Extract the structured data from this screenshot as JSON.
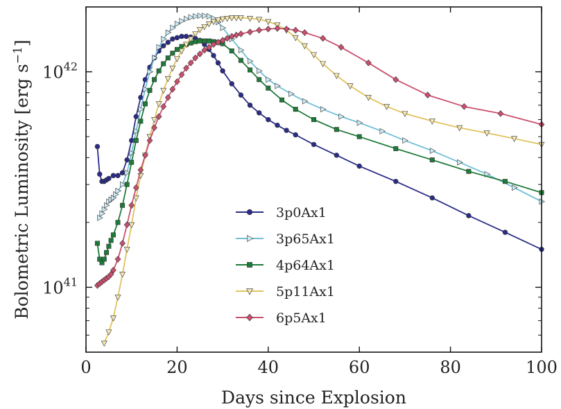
{
  "chart_data": {
    "type": "line",
    "xlabel": "Days since Explosion",
    "ylabel": "Bolometric Luminosity [erg s",
    "ylabel_unit_exp": "−1",
    "ylabel_close": "]",
    "xlim": [
      0,
      100
    ],
    "ylim": [
      5e+40,
      2e+42
    ],
    "yscale": "log",
    "xticks": [
      0,
      20,
      40,
      60,
      80,
      100
    ],
    "xtick_labels": [
      "0",
      "20",
      "40",
      "60",
      "80",
      "100"
    ],
    "yticks": [
      1e+41,
      1e+42
    ],
    "ytick_labels": [
      {
        "base": "10",
        "exp": "41"
      },
      {
        "base": "10",
        "exp": "42"
      }
    ],
    "grid": false,
    "legend_position": "lower-center",
    "series": [
      {
        "name": "3p0Ax1",
        "color": "#2b2c86",
        "marker": "circle",
        "x": [
          2.5,
          3,
          3.5,
          4,
          4.5,
          5,
          6,
          7,
          8,
          9,
          10,
          11,
          12,
          13,
          14,
          15,
          16,
          17,
          18,
          19,
          20,
          21,
          22,
          23,
          24,
          25,
          26,
          27,
          28,
          29,
          30,
          32,
          34,
          36,
          38,
          40,
          42,
          44,
          46,
          50,
          55,
          60,
          68,
          76,
          84,
          92,
          100
        ],
        "y": [
          4.5e+41,
          3.35e+41,
          3.1e+41,
          3.1e+41,
          3.15e+41,
          3.2e+41,
          3.3e+41,
          3.3e+41,
          3.4e+41,
          3.9e+41,
          4.8e+41,
          6.2e+41,
          7.6e+41,
          9.2e+41,
          1.05e+42,
          1.16e+42,
          1.25e+42,
          1.32e+42,
          1.37e+42,
          1.42e+42,
          1.44e+42,
          1.46e+42,
          1.46e+42,
          1.45e+42,
          1.43e+42,
          1.4e+42,
          1.34e+42,
          1.27e+42,
          1.19e+42,
          1.1e+42,
          1.01e+42,
          8.8e+41,
          7.8e+41,
          7e+41,
          6.45e+41,
          6e+41,
          5.65e+41,
          5.35e+41,
          5.1e+41,
          4.6e+41,
          4.1e+41,
          3.65e+41,
          3.1e+41,
          2.6e+41,
          2.15e+41,
          1.8e+41,
          1.5e+41
        ]
      },
      {
        "name": "3p65Ax1",
        "color": "#6fbfd6",
        "marker": "triangle-right",
        "x": [
          3,
          3.5,
          4,
          4.5,
          5,
          5.5,
          6,
          6.5,
          7,
          8,
          9,
          10,
          11,
          12,
          13,
          14,
          15,
          16,
          17,
          18,
          19,
          20,
          21,
          22,
          23,
          24,
          25,
          26,
          27,
          28,
          29,
          30,
          32,
          34,
          36,
          38,
          40,
          42,
          45,
          48,
          52,
          56,
          60,
          65,
          70,
          76,
          82,
          88,
          94,
          100
        ],
        "y": [
          2.1e+41,
          2.2e+41,
          2.3e+41,
          2.4e+41,
          2.5e+41,
          2.55e+41,
          2.6e+41,
          2.7e+41,
          2.8e+41,
          3e+41,
          3.4e+41,
          4.2e+41,
          5.3e+41,
          6.7e+41,
          8.3e+41,
          1e+42,
          1.16e+42,
          1.3e+42,
          1.42e+42,
          1.52e+42,
          1.6e+42,
          1.67e+42,
          1.72e+42,
          1.76e+42,
          1.79e+42,
          1.81e+42,
          1.82e+42,
          1.82e+42,
          1.81e+42,
          1.77e+42,
          1.7e+42,
          1.6e+42,
          1.42e+42,
          1.26e+42,
          1.12e+42,
          1.01e+42,
          9.2e+41,
          8.6e+41,
          7.9e+41,
          7.3e+41,
          6.7e+41,
          6.2e+41,
          5.8e+41,
          5.3e+41,
          4.8e+41,
          4.3e+41,
          3.8e+41,
          3.35e+41,
          2.9e+41,
          2.5e+41
        ]
      },
      {
        "name": "4p64Ax1",
        "color": "#1f7a3a",
        "marker": "square",
        "x": [
          2.5,
          3,
          3.5,
          4,
          4.5,
          5,
          5.5,
          6,
          7,
          8,
          9,
          10,
          11,
          12,
          13,
          14,
          15,
          16,
          17,
          18,
          19,
          20,
          21,
          22,
          23,
          24,
          25,
          26,
          27,
          28,
          29,
          30,
          32,
          34,
          36,
          38,
          40,
          43,
          46,
          50,
          55,
          60,
          68,
          76,
          84,
          92,
          100
        ],
        "y": [
          1.6e+41,
          1.35e+41,
          1.3e+41,
          1.35e+41,
          1.45e+41,
          1.55e+41,
          1.65e+41,
          1.75e+41,
          2e+41,
          2.4e+41,
          3e+41,
          3.8e+41,
          4.8e+41,
          5.9e+41,
          7.1e+41,
          8.2e+41,
          9.2e+41,
          1.01e+42,
          1.09e+42,
          1.16e+42,
          1.22e+42,
          1.27e+42,
          1.31e+42,
          1.34e+42,
          1.36e+42,
          1.38e+42,
          1.39e+42,
          1.39e+42,
          1.39e+42,
          1.38e+42,
          1.37e+42,
          1.35e+42,
          1.25e+42,
          1.13e+42,
          1.02e+42,
          9.2e+41,
          8.4e+41,
          7.4e+41,
          6.7e+41,
          6e+41,
          5.4e+41,
          5e+41,
          4.4e+41,
          3.9e+41,
          3.45e+41,
          3.1e+41,
          2.75e+41
        ]
      },
      {
        "name": "5p11Ax1",
        "color": "#e0c25c",
        "marker": "triangle-down",
        "x": [
          4,
          5,
          6,
          7,
          8,
          9,
          10,
          11,
          12,
          13,
          14,
          15,
          16,
          17,
          18,
          19,
          20,
          21,
          22,
          23,
          24,
          25,
          26,
          27,
          28,
          29,
          30,
          31,
          32,
          33,
          34,
          36,
          38,
          40,
          42,
          44,
          46,
          48,
          50,
          52,
          55,
          58,
          62,
          66,
          70,
          76,
          82,
          88,
          94,
          100
        ],
        "y": [
          5.5e+40,
          6.2e+40,
          7.2e+40,
          9e+40,
          1.15e+41,
          1.5e+41,
          1.95e+41,
          2.6e+41,
          3.3e+41,
          4.1e+41,
          5e+41,
          6e+41,
          7.1e+41,
          8.2e+41,
          9.3e+41,
          1.04e+42,
          1.15e+42,
          1.25e+42,
          1.34e+42,
          1.42e+42,
          1.5e+42,
          1.57e+42,
          1.62e+42,
          1.67e+42,
          1.71e+42,
          1.74e+42,
          1.76e+42,
          1.77e+42,
          1.78e+42,
          1.78e+42,
          1.78e+42,
          1.77e+42,
          1.75e+42,
          1.71e+42,
          1.65e+42,
          1.56e+42,
          1.44e+42,
          1.32e+42,
          1.2e+42,
          1.09e+42,
          9.6e+41,
          8.6e+41,
          7.6e+41,
          6.9e+41,
          6.4e+41,
          5.9e+41,
          5.5e+41,
          5.2e+41,
          4.9e+41,
          4.6e+41
        ]
      },
      {
        "name": "6p5Ax1",
        "color": "#c94f6d",
        "marker": "diamond",
        "x": [
          2.5,
          3,
          3.5,
          4,
          4.5,
          5,
          5.5,
          6,
          7,
          8,
          9,
          10,
          11,
          12,
          13,
          14,
          15,
          16,
          17,
          18,
          19,
          20,
          21,
          22,
          23,
          24,
          25,
          26,
          27,
          28,
          29,
          30,
          31,
          32,
          33,
          34,
          36,
          38,
          40,
          42,
          44,
          46,
          48,
          52,
          56,
          62,
          68,
          75,
          83,
          91,
          100
        ],
        "y": [
          1.02e+41,
          1.04e+41,
          1.06e+41,
          1.08e+41,
          1.1e+41,
          1.12e+41,
          1.15e+41,
          1.2e+41,
          1.35e+41,
          1.6e+41,
          1.95e+41,
          2.4e+41,
          2.9e+41,
          3.5e+41,
          4.1e+41,
          4.8e+41,
          5.5e+41,
          6.2e+41,
          6.9e+41,
          7.6e+41,
          8.3e+41,
          9e+41,
          9.7e+41,
          1.04e+42,
          1.1e+42,
          1.16e+42,
          1.21e+42,
          1.26e+42,
          1.3e+42,
          1.34e+42,
          1.37e+42,
          1.4e+42,
          1.43e+42,
          1.46e+42,
          1.48e+42,
          1.5e+42,
          1.53e+42,
          1.56e+42,
          1.58e+42,
          1.59e+42,
          1.58e+42,
          1.56e+42,
          1.52e+42,
          1.43e+42,
          1.3e+42,
          1.1e+42,
          9.2e+41,
          7.8e+41,
          6.9e+41,
          6.4e+41,
          5.7e+41
        ]
      }
    ]
  }
}
